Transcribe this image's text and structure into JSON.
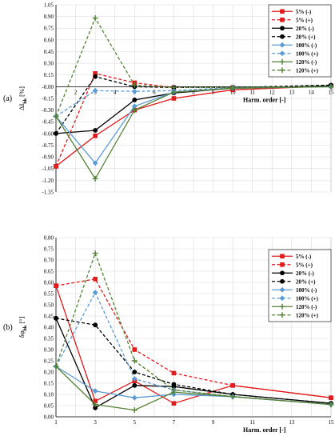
{
  "chart_data": [
    {
      "type": "line",
      "panel_label": "(a)",
      "ylabel": "ΔI",
      "ylabel_sub": "hk",
      "ylabel_unit": " [%]",
      "xlabel": "Harm. order [-]",
      "ylim": [
        -1.35,
        1.05
      ],
      "ystep": 0.15,
      "x_ticks": [
        1,
        2,
        3,
        4,
        5,
        6,
        7,
        8,
        9,
        10,
        11,
        12,
        13,
        14,
        15
      ],
      "legend_position": "top-right",
      "grid": true,
      "series": [
        {
          "name": "5% (-)",
          "color": "#e31a1c",
          "dash": "solid",
          "marker": "square",
          "x": [
            1,
            3,
            5,
            7,
            10,
            15
          ],
          "y": [
            -1.02,
            -0.63,
            -0.3,
            -0.15,
            -0.04,
            0.01
          ]
        },
        {
          "name": "5% (+)",
          "color": "#e31a1c",
          "dash": "dashed",
          "marker": "square",
          "x": [
            1,
            3,
            5,
            7,
            10,
            15
          ],
          "y": [
            -1.02,
            0.17,
            0.05,
            -0.01,
            -0.01,
            0.01
          ]
        },
        {
          "name": "20% (-)",
          "color": "#000000",
          "dash": "solid",
          "marker": "circle",
          "x": [
            1,
            3,
            5,
            7,
            10,
            15
          ],
          "y": [
            -0.6,
            -0.56,
            -0.17,
            -0.08,
            -0.02,
            0.01
          ]
        },
        {
          "name": "20% (+)",
          "color": "#000000",
          "dash": "dashed",
          "marker": "circle",
          "x": [
            1,
            3,
            5,
            7,
            10,
            15
          ],
          "y": [
            -0.6,
            0.13,
            0.0,
            -0.01,
            -0.01,
            0.02
          ]
        },
        {
          "name": "100% (-)",
          "color": "#5b9bd5",
          "dash": "solid",
          "marker": "diamond",
          "x": [
            1,
            3,
            5,
            7,
            10,
            15
          ],
          "y": [
            -0.38,
            -0.98,
            -0.25,
            -0.07,
            -0.02,
            0.0
          ]
        },
        {
          "name": "100% (+)",
          "color": "#5b9bd5",
          "dash": "dashed",
          "marker": "diamond",
          "x": [
            1,
            3,
            5,
            7,
            10,
            15
          ],
          "y": [
            -0.38,
            -0.05,
            -0.06,
            -0.05,
            -0.01,
            0.0
          ]
        },
        {
          "name": "120% (-)",
          "color": "#548235",
          "dash": "solid",
          "marker": "plus",
          "x": [
            1,
            3,
            5,
            7,
            10,
            15
          ],
          "y": [
            -0.38,
            -1.18,
            -0.3,
            -0.07,
            -0.02,
            0.0
          ]
        },
        {
          "name": "120% (+)",
          "color": "#548235",
          "dash": "dashed",
          "marker": "plus",
          "x": [
            1,
            3,
            5,
            7,
            10,
            15
          ],
          "y": [
            -0.38,
            0.88,
            0.02,
            -0.01,
            -0.01,
            0.0
          ]
        }
      ]
    },
    {
      "type": "line",
      "panel_label": "(b)",
      "ylabel": "δφ",
      "ylabel_sub": "hk",
      "ylabel_unit": " [°]",
      "xlabel": "Harm. order [-]",
      "ylim": [
        0.0,
        0.8
      ],
      "ystep": 0.05,
      "x_ticks": [
        1,
        3,
        5,
        7,
        9,
        11,
        13,
        15
      ],
      "legend_position": "right",
      "grid": true,
      "series": [
        {
          "name": "5% (-)",
          "color": "#e31a1c",
          "dash": "solid",
          "marker": "square",
          "x": [
            1,
            3,
            5,
            7,
            10,
            15
          ],
          "y": [
            0.585,
            0.07,
            0.16,
            0.06,
            0.14,
            0.085
          ]
        },
        {
          "name": "5% (+)",
          "color": "#e31a1c",
          "dash": "dashed",
          "marker": "square",
          "x": [
            1,
            3,
            5,
            7,
            10,
            15
          ],
          "y": [
            0.585,
            0.615,
            0.3,
            0.195,
            0.14,
            0.085
          ]
        },
        {
          "name": "20% (-)",
          "color": "#000000",
          "dash": "solid",
          "marker": "circle",
          "x": [
            1,
            3,
            5,
            7,
            10,
            15
          ],
          "y": [
            0.44,
            0.04,
            0.14,
            0.135,
            0.1,
            0.06
          ]
        },
        {
          "name": "20% (+)",
          "color": "#000000",
          "dash": "dashed",
          "marker": "circle",
          "x": [
            1,
            3,
            5,
            7,
            10,
            15
          ],
          "y": [
            0.44,
            0.41,
            0.2,
            0.145,
            0.1,
            0.06
          ]
        },
        {
          "name": "100% (-)",
          "color": "#5b9bd5",
          "dash": "solid",
          "marker": "diamond",
          "x": [
            1,
            3,
            5,
            7,
            10,
            15
          ],
          "y": [
            0.225,
            0.115,
            0.085,
            0.1,
            0.09,
            0.055
          ]
        },
        {
          "name": "100% (+)",
          "color": "#5b9bd5",
          "dash": "dashed",
          "marker": "diamond",
          "x": [
            1,
            3,
            5,
            7,
            10,
            15
          ],
          "y": [
            0.225,
            0.555,
            0.17,
            0.12,
            0.09,
            0.055
          ]
        },
        {
          "name": "120% (-)",
          "color": "#548235",
          "dash": "solid",
          "marker": "plus",
          "x": [
            1,
            3,
            5,
            7,
            10,
            15
          ],
          "y": [
            0.225,
            0.055,
            0.03,
            0.11,
            0.09,
            0.055
          ]
        },
        {
          "name": "120% (+)",
          "color": "#548235",
          "dash": "dashed",
          "marker": "plus",
          "x": [
            1,
            3,
            5,
            7,
            10,
            15
          ],
          "y": [
            0.225,
            0.73,
            0.25,
            0.12,
            0.09,
            0.055
          ]
        }
      ]
    }
  ]
}
